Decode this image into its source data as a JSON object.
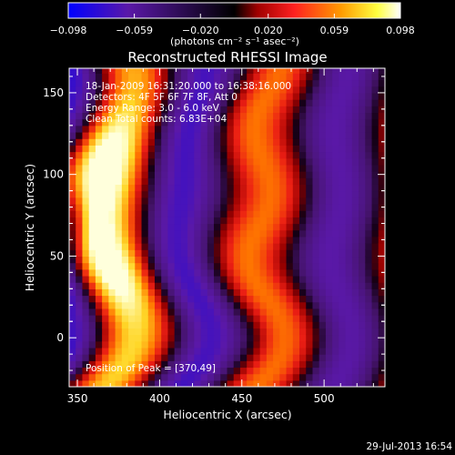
{
  "colorbar": {
    "ticks": [
      -0.098,
      -0.059,
      -0.02,
      0.02,
      0.059,
      0.098
    ],
    "tick_labels": [
      "−0.098",
      "−0.059",
      "−0.020",
      "0.020",
      "0.059",
      "0.098"
    ],
    "units_label": "(photons cm⁻² s⁻¹ asec⁻²)",
    "range": [
      -0.098,
      0.098
    ],
    "colors": [
      "#0000ff",
      "#5a18a8",
      "#000000",
      "#a00000",
      "#ff2020",
      "#ff9a00",
      "#ffff40",
      "#ffffff"
    ]
  },
  "chart_data": {
    "type": "heatmap",
    "title": "Reconstructed RHESSI Image",
    "xlabel": "Heliocentric X (arcsec)",
    "ylabel": "Heliocentric Y (arcsec)",
    "xlim": [
      345,
      537
    ],
    "ylim": [
      -30,
      165
    ],
    "x_ticks": [
      350,
      400,
      450,
      500
    ],
    "y_ticks": [
      0,
      50,
      100,
      150
    ],
    "x_tick_labels": [
      "350",
      "400",
      "450",
      "500"
    ],
    "y_tick_labels": [
      "0",
      "50",
      "100",
      "150"
    ],
    "info_lines": [
      "18-Jan-2009 16:31:20.000 to 16:38:16.000",
      "Detectors: 4F 5F 6F 7F 8F, Att 0",
      "Energy Range: 3.0 - 6.0 keV",
      "Clean    Total counts: 6.83E+04"
    ],
    "peak_label": "Position of Peak = [370,49]",
    "peak_position": [
      370,
      49
    ],
    "footer_date": "29-Jul-2013 16:54"
  }
}
